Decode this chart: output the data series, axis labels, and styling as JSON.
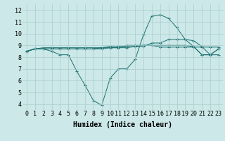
{
  "xlabel": "Humidex (Indice chaleur)",
  "background_color": "#cce8e8",
  "grid_color": "#aacccc",
  "line_color": "#1a7070",
  "xlim": [
    -0.5,
    23.5
  ],
  "ylim": [
    3.5,
    12.5
  ],
  "xticks": [
    0,
    1,
    2,
    3,
    4,
    5,
    6,
    7,
    8,
    9,
    10,
    11,
    12,
    13,
    14,
    15,
    16,
    17,
    18,
    19,
    20,
    21,
    22,
    23
  ],
  "yticks": [
    4,
    5,
    6,
    7,
    8,
    9,
    10,
    11,
    12
  ],
  "series": [
    [
      8.5,
      8.7,
      8.7,
      8.5,
      8.2,
      8.2,
      6.8,
      5.6,
      4.3,
      3.9,
      6.2,
      7.0,
      7.0,
      7.8,
      9.9,
      11.5,
      11.6,
      11.3,
      10.5,
      9.5,
      9.4,
      8.9,
      8.2,
      8.2
    ],
    [
      8.5,
      8.7,
      8.8,
      8.8,
      8.8,
      8.8,
      8.8,
      8.8,
      8.8,
      8.8,
      8.8,
      8.8,
      8.8,
      8.9,
      9.0,
      9.0,
      8.85,
      8.85,
      8.85,
      8.85,
      8.85,
      8.85,
      8.85,
      8.85
    ],
    [
      8.5,
      8.7,
      8.7,
      8.7,
      8.7,
      8.7,
      8.7,
      8.7,
      8.7,
      8.7,
      8.8,
      8.8,
      9.0,
      9.0,
      9.0,
      9.0,
      9.0,
      9.0,
      9.0,
      9.0,
      8.9,
      8.2,
      8.2,
      8.7
    ],
    [
      8.5,
      8.7,
      8.7,
      8.7,
      8.7,
      8.7,
      8.7,
      8.7,
      8.7,
      8.8,
      8.9,
      8.9,
      8.9,
      8.9,
      8.9,
      9.2,
      9.2,
      9.5,
      9.5,
      9.5,
      8.9,
      8.2,
      8.2,
      8.7
    ]
  ],
  "tick_fontsize": 6,
  "xlabel_fontsize": 7
}
